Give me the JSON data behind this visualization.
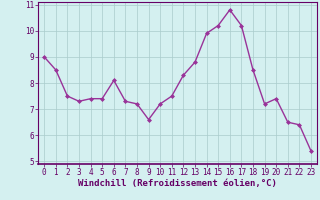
{
  "x": [
    0,
    1,
    2,
    3,
    4,
    5,
    6,
    7,
    8,
    9,
    10,
    11,
    12,
    13,
    14,
    15,
    16,
    17,
    18,
    19,
    20,
    21,
    22,
    23
  ],
  "y": [
    9.0,
    8.5,
    7.5,
    7.3,
    7.4,
    7.4,
    8.1,
    7.3,
    7.2,
    6.6,
    7.2,
    7.5,
    8.3,
    8.8,
    9.9,
    10.2,
    10.8,
    10.2,
    8.5,
    7.2,
    7.4,
    6.5,
    6.4,
    5.4
  ],
  "line_color": "#993399",
  "marker": "D",
  "marker_size": 2.0,
  "linewidth": 1.0,
  "bg_color": "#d4f0f0",
  "grid_color": "#aacccc",
  "xlabel": "Windchill (Refroidissement éolien,°C)",
  "xlim": [
    -0.5,
    23.5
  ],
  "ylim": [
    4.9,
    11.1
  ],
  "yticks": [
    5,
    6,
    7,
    8,
    9,
    10,
    11
  ],
  "xticks": [
    0,
    1,
    2,
    3,
    4,
    5,
    6,
    7,
    8,
    9,
    10,
    11,
    12,
    13,
    14,
    15,
    16,
    17,
    18,
    19,
    20,
    21,
    22,
    23
  ],
  "tick_fontsize": 5.5,
  "xlabel_fontsize": 6.5,
  "tick_color": "#660066",
  "spine_color": "#660066",
  "axis_bg": "#660066"
}
